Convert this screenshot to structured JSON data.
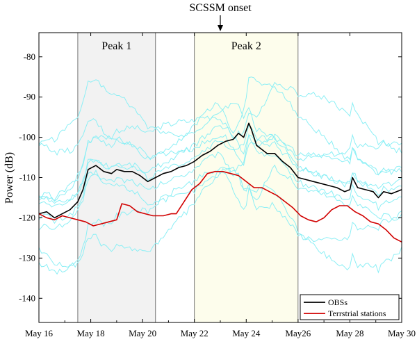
{
  "chart_data": {
    "type": "line",
    "annotation": "SCSSM onset",
    "annotation_x": 23.0,
    "ylabel": "Power (dB)",
    "xlabel": "",
    "xlim": [
      16,
      30
    ],
    "ylim": [
      -146,
      -74
    ],
    "x_ticks": [
      {
        "value": 16,
        "label": "May 16"
      },
      {
        "value": 18,
        "label": "May 18"
      },
      {
        "value": 20,
        "label": "May 20"
      },
      {
        "value": 22,
        "label": "May 22"
      },
      {
        "value": 24,
        "label": "May 24"
      },
      {
        "value": 26,
        "label": "May26"
      },
      {
        "value": 28,
        "label": "May 28"
      },
      {
        "value": 30,
        "label": "May 30"
      }
    ],
    "y_ticks": [
      -80,
      -90,
      -100,
      -110,
      -120,
      -130,
      -140
    ],
    "regions": [
      {
        "label": "Peak 1",
        "x0": 17.5,
        "x1": 20.5,
        "color": "#f2f2f2"
      },
      {
        "label": "Peak 2",
        "x0": 22.0,
        "x1": 26.0,
        "color": "#fdfdec"
      }
    ],
    "legend_position": "bottom-right",
    "series": [
      {
        "name": "OBSs",
        "color": "#000000",
        "x": [
          16.0,
          16.3,
          16.6,
          16.9,
          17.2,
          17.5,
          17.7,
          17.9,
          18.2,
          18.5,
          18.8,
          19.0,
          19.3,
          19.6,
          19.9,
          20.2,
          20.5,
          20.8,
          21.1,
          21.4,
          21.7,
          22.0,
          22.3,
          22.6,
          22.9,
          23.2,
          23.5,
          23.7,
          23.9,
          24.1,
          24.2,
          24.4,
          24.6,
          24.8,
          25.1,
          25.4,
          25.7,
          26.0,
          26.3,
          26.6,
          26.9,
          27.2,
          27.5,
          27.8,
          28.0,
          28.1,
          28.3,
          28.6,
          28.9,
          29.1,
          29.3,
          29.6,
          30.0
        ],
        "y": [
          -119,
          -118.5,
          -120,
          -119,
          -118,
          -116,
          -113,
          -108,
          -107,
          -108.5,
          -109,
          -108,
          -108.5,
          -108.5,
          -109.5,
          -111,
          -110,
          -109,
          -108.5,
          -107.5,
          -107,
          -106,
          -104.5,
          -103.5,
          -102,
          -101,
          -100.5,
          -99,
          -100,
          -96.5,
          -98,
          -102,
          -103,
          -104,
          -104,
          -106,
          -107.5,
          -110,
          -110.5,
          -111,
          -111.5,
          -112,
          -112.5,
          -113.5,
          -113,
          -110,
          -112.5,
          -113,
          -113.5,
          -115,
          -113.5,
          -114,
          -113
        ]
      },
      {
        "name": "Terrstrial stations",
        "color": "#d10000",
        "x": [
          16.0,
          16.3,
          16.6,
          16.9,
          17.2,
          17.5,
          17.8,
          18.1,
          18.4,
          18.7,
          19.0,
          19.2,
          19.5,
          19.8,
          20.1,
          20.4,
          20.8,
          21.1,
          21.3,
          21.6,
          21.9,
          22.2,
          22.5,
          22.8,
          23.1,
          23.4,
          23.7,
          24.0,
          24.3,
          24.6,
          24.9,
          25.2,
          25.5,
          25.8,
          26.1,
          26.4,
          26.7,
          27.0,
          27.3,
          27.6,
          27.9,
          28.2,
          28.5,
          28.8,
          29.1,
          29.4,
          29.7,
          30.0
        ],
        "y": [
          -119,
          -120,
          -120.5,
          -119.5,
          -120,
          -120.5,
          -121,
          -122,
          -121.5,
          -121,
          -120.5,
          -116.5,
          -117,
          -118.5,
          -119,
          -119.5,
          -119.5,
          -119,
          -119,
          -116,
          -113,
          -111.5,
          -109,
          -108.5,
          -108.5,
          -109,
          -109.5,
          -111,
          -112.5,
          -112.5,
          -113.5,
          -114.5,
          -116,
          -117.5,
          -119.5,
          -120.5,
          -121,
          -120,
          -118,
          -117,
          -117,
          -118.5,
          -119.5,
          -121,
          -121.5,
          -123,
          -125,
          -126
        ]
      }
    ]
  }
}
